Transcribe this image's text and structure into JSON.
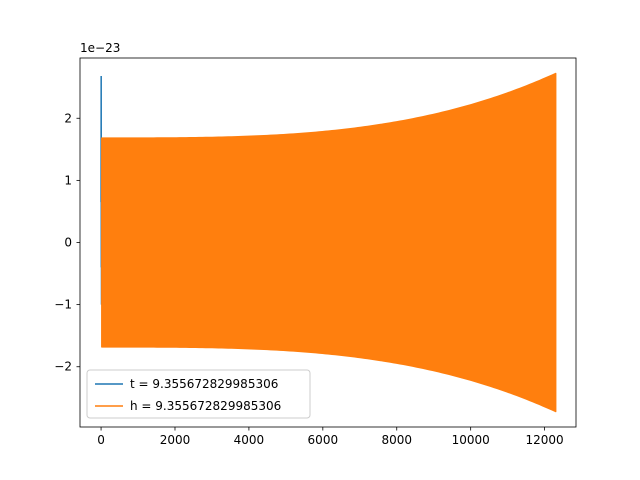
{
  "chart_data": {
    "type": "line",
    "title": "",
    "xlabel": "",
    "ylabel": "",
    "y_offset_label": "1e−23",
    "xlim": [
      -570,
      12850
    ],
    "ylim": [
      -2.97,
      2.97
    ],
    "x_ticks": [
      0,
      2000,
      4000,
      6000,
      8000,
      10000,
      12000
    ],
    "x_tick_labels": [
      "0",
      "2000",
      "4000",
      "6000",
      "8000",
      "10000",
      "12000"
    ],
    "y_ticks": [
      -2,
      -1,
      0,
      1,
      2
    ],
    "y_tick_labels": [
      "−2",
      "−1",
      "0",
      "1",
      "2"
    ],
    "grid": false,
    "legend_position": "lower-left",
    "series": [
      {
        "name": "t = 9.355672829985306",
        "color": "#1f77b4",
        "x_range": [
          0,
          20
        ],
        "envelope_start": 2.68,
        "envelope_end": 2.68,
        "points": [
          [
            0,
            0.65
          ],
          [
            3,
            2.68
          ],
          [
            6,
            -0.4
          ],
          [
            9,
            1.6
          ],
          [
            12,
            -1.0
          ],
          [
            15,
            1.3
          ],
          [
            18,
            -0.2
          ],
          [
            20,
            0.9
          ]
        ]
      },
      {
        "name": "h = 9.355672829985306",
        "color": "#ff7f0e",
        "x_range": [
          20,
          12300
        ],
        "envelope_start": 1.68,
        "envelope_end": 2.72,
        "oscillating_fill": true
      }
    ]
  }
}
